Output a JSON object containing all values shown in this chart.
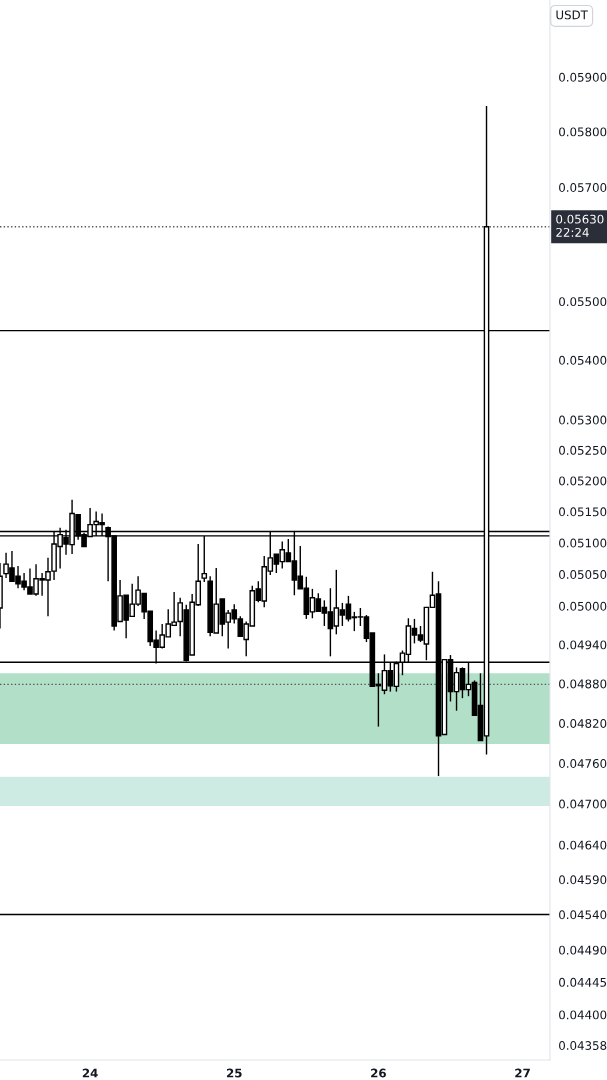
{
  "chart_data": {
    "type": "candlestick",
    "ylabel": "USDT",
    "log": true,
    "x": [
      23.375,
      23.417,
      23.458,
      23.5,
      23.542,
      23.583,
      23.625,
      23.667,
      23.708,
      23.75,
      23.792,
      23.833,
      23.875,
      23.917,
      23.958,
      24,
      24.042,
      24.083,
      24.125,
      24.167,
      24.208,
      24.25,
      24.292,
      24.333,
      24.375,
      24.417,
      24.458,
      24.5,
      24.542,
      24.583,
      24.625,
      24.667,
      24.708,
      24.75,
      24.792,
      24.833,
      24.875,
      24.917,
      24.958,
      25,
      25.042,
      25.083,
      25.125,
      25.167,
      25.208,
      25.25,
      25.292,
      25.333,
      25.375,
      25.417,
      25.458,
      25.5,
      25.542,
      25.583,
      25.625,
      25.667,
      25.708,
      25.75,
      25.792,
      25.833,
      25.875,
      25.917,
      25.958,
      26,
      26.042,
      26.083,
      26.125,
      26.167,
      26.208,
      26.25,
      26.292,
      26.333,
      26.375,
      26.417,
      26.458,
      26.5,
      26.542,
      26.583,
      26.625,
      26.667,
      26.708,
      26.75
    ],
    "ohlc": [
      [
        0.04997,
        0.05068,
        0.04965,
        0.05047
      ],
      [
        0.05051,
        0.05084,
        0.05044,
        0.05066
      ],
      [
        0.0506,
        0.05087,
        0.05039,
        0.05039
      ],
      [
        0.05047,
        0.05063,
        0.05028,
        0.05035
      ],
      [
        0.05039,
        0.05052,
        0.05025,
        0.0503
      ],
      [
        0.0503,
        0.05059,
        0.05019,
        0.05019
      ],
      [
        0.05019,
        0.05066,
        0.05016,
        0.05043
      ],
      [
        0.05043,
        0.05052,
        0.05016,
        0.05041
      ],
      [
        0.05041,
        0.05076,
        0.04984,
        0.05054
      ],
      [
        0.05055,
        0.05119,
        0.05041,
        0.05098
      ],
      [
        0.05094,
        0.05124,
        0.05059,
        0.05113
      ],
      [
        0.05108,
        0.05121,
        0.05081,
        0.05098
      ],
      [
        0.05097,
        0.05169,
        0.05082,
        0.05147
      ],
      [
        0.05145,
        0.05145,
        0.05105,
        0.05111
      ],
      [
        0.05113,
        0.05116,
        0.05094,
        0.05094
      ],
      [
        0.0511,
        0.05156,
        0.0511,
        0.05129
      ],
      [
        0.05129,
        0.0515,
        0.05111,
        0.05134
      ],
      [
        0.05132,
        0.05147,
        0.05111,
        0.05129
      ],
      [
        0.05124,
        0.05126,
        0.05039,
        0.0511
      ],
      [
        0.05111,
        0.05111,
        0.04962,
        0.04969
      ],
      [
        0.04976,
        0.05041,
        0.04976,
        0.05016
      ],
      [
        0.05017,
        0.05017,
        0.0495,
        0.04978
      ],
      [
        0.04984,
        0.05035,
        0.04984,
        0.05003
      ],
      [
        0.05003,
        0.05047,
        0.05,
        0.05025
      ],
      [
        0.0502,
        0.0502,
        0.0498,
        0.04991
      ],
      [
        0.04992,
        0.04992,
        0.04938,
        0.04945
      ],
      [
        0.04947,
        0.04962,
        0.04911,
        0.04936
      ],
      [
        0.04936,
        0.04972,
        0.04934,
        0.04955
      ],
      [
        0.04952,
        0.04995,
        0.04952,
        0.04972
      ],
      [
        0.0497,
        0.05022,
        0.0497,
        0.04975
      ],
      [
        0.04976,
        0.05013,
        0.04953,
        0.05005
      ],
      [
        0.04994,
        0.05002,
        0.04914,
        0.04916
      ],
      [
        0.04924,
        0.05019,
        0.04924,
        0.05006
      ],
      [
        0.05002,
        0.05098,
        0.05,
        0.05039
      ],
      [
        0.05044,
        0.05111,
        0.05038,
        0.05051
      ],
      [
        0.05039,
        0.05047,
        0.04953,
        0.04959
      ],
      [
        0.04958,
        0.0506,
        0.04958,
        0.05003
      ],
      [
        0.05011,
        0.05011,
        0.04953,
        0.04972
      ],
      [
        0.04975,
        0.04994,
        0.04934,
        0.04989
      ],
      [
        0.04994,
        0.05003,
        0.04973,
        0.0498
      ],
      [
        0.0498,
        0.04984,
        0.04953,
        0.04953
      ],
      [
        0.04948,
        0.04976,
        0.04922,
        0.04972
      ],
      [
        0.04969,
        0.05032,
        0.04969,
        0.05024
      ],
      [
        0.05027,
        0.05039,
        0.05006,
        0.05009
      ],
      [
        0.05008,
        0.05079,
        0.04998,
        0.05062
      ],
      [
        0.05055,
        0.05119,
        0.05049,
        0.05076
      ],
      [
        0.05082,
        0.05082,
        0.05052,
        0.05066
      ],
      [
        0.0507,
        0.05102,
        0.05059,
        0.05089
      ],
      [
        0.05084,
        0.05106,
        0.0507,
        0.0507
      ],
      [
        0.05071,
        0.05119,
        0.05017,
        0.05041
      ],
      [
        0.05047,
        0.05095,
        0.05027,
        0.05027
      ],
      [
        0.05028,
        0.05046,
        0.0498,
        0.04987
      ],
      [
        0.04991,
        0.05027,
        0.04981,
        0.05013
      ],
      [
        0.05011,
        0.0502,
        0.04991,
        0.04992
      ],
      [
        0.04998,
        0.05009,
        0.04969,
        0.04989
      ],
      [
        0.04991,
        0.05028,
        0.04922,
        0.04965
      ],
      [
        0.04969,
        0.05057,
        0.04956,
        0.04997
      ],
      [
        0.04994,
        0.05005,
        0.04969,
        0.04986
      ],
      [
        0.05003,
        0.05016,
        0.04976,
        0.0498
      ],
      [
        0.04983,
        0.04991,
        0.04961,
        0.04982
      ],
      [
        0.04983,
        0.04997,
        0.04969,
        0.04983
      ],
      [
        0.04983,
        0.04986,
        0.04944,
        0.0495
      ],
      [
        0.04958,
        0.04958,
        0.04876,
        0.04876
      ],
      [
        0.04879,
        0.04896,
        0.04815,
        0.04877
      ],
      [
        0.0487,
        0.04925,
        0.04864,
        0.049
      ],
      [
        0.049,
        0.04913,
        0.04868,
        0.04877
      ],
      [
        0.04876,
        0.04914,
        0.04868,
        0.04911
      ],
      [
        0.04913,
        0.04931,
        0.04893,
        0.04927
      ],
      [
        0.04925,
        0.04981,
        0.04913,
        0.04969
      ],
      [
        0.04965,
        0.0498,
        0.04942,
        0.04955
      ],
      [
        0.04955,
        0.04969,
        0.04944,
        0.04947
      ],
      [
        0.04941,
        0.04998,
        0.04916,
        0.04998
      ],
      [
        0.04998,
        0.05054,
        0.04998,
        0.05017
      ],
      [
        0.05019,
        0.05039,
        0.04741,
        0.04801
      ],
      [
        0.04803,
        0.04917,
        0.04803,
        0.04917
      ],
      [
        0.04917,
        0.04924,
        0.04853,
        0.04868
      ],
      [
        0.04868,
        0.04905,
        0.04839,
        0.04897
      ],
      [
        0.04903,
        0.04905,
        0.04858,
        0.04871
      ],
      [
        0.04871,
        0.04913,
        0.04861,
        0.04879
      ],
      [
        0.04882,
        0.04885,
        0.04832,
        0.04832
      ],
      [
        0.04847,
        0.04896,
        0.04794,
        0.04794
      ],
      [
        0.04801,
        0.05847,
        0.04773,
        0.0563
      ]
    ],
    "xlim": [
      23.375,
      27.19
    ],
    "xticks": [
      24,
      25,
      26,
      27
    ],
    "ylim": [
      0.04338,
      0.06044
    ],
    "yticks": [
      {
        "value": 0.059,
        "label": "0.05900"
      },
      {
        "value": 0.058,
        "label": "0.05800"
      },
      {
        "value": 0.057,
        "label": "0.05700"
      },
      {
        "value": 0.055,
        "label": "0.05500"
      },
      {
        "value": 0.054,
        "label": "0.05400"
      },
      {
        "value": 0.053,
        "label": "0.05300"
      },
      {
        "value": 0.0525,
        "label": "0.05250"
      },
      {
        "value": 0.052,
        "label": "0.05200"
      },
      {
        "value": 0.0515,
        "label": "0.05150"
      },
      {
        "value": 0.051,
        "label": "0.05100"
      },
      {
        "value": 0.0505,
        "label": "0.05050"
      },
      {
        "value": 0.05,
        "label": "0.05000"
      },
      {
        "value": 0.0494,
        "label": "0.04940"
      },
      {
        "value": 0.0488,
        "label": "0.04880"
      },
      {
        "value": 0.0482,
        "label": "0.04820"
      },
      {
        "value": 0.0476,
        "label": "0.04760"
      },
      {
        "value": 0.047,
        "label": "0.04700"
      },
      {
        "value": 0.0464,
        "label": "0.04640"
      },
      {
        "value": 0.0459,
        "label": "0.04590"
      },
      {
        "value": 0.0454,
        "label": "0.04540"
      },
      {
        "value": 0.0449,
        "label": "0.04490"
      },
      {
        "value": 0.04445,
        "label": "0.04445"
      },
      {
        "value": 0.044,
        "label": "0.04400"
      },
      {
        "value": 0.04358,
        "label": "0.04358"
      }
    ],
    "ref_lines": [
      {
        "axis": "y",
        "value": 0.0545,
        "color": "#000000",
        "line_style": "solid"
      },
      {
        "axis": "y",
        "value": 0.05118,
        "color": "#000000",
        "line_style": "solid"
      },
      {
        "axis": "y",
        "value": 0.05111,
        "color": "#000000",
        "line_style": "solid"
      },
      {
        "axis": "y",
        "value": 0.04913,
        "color": "#000000",
        "line_style": "solid"
      },
      {
        "axis": "y",
        "value": 0.0454,
        "color": "#000000",
        "line_style": "solid"
      },
      {
        "axis": "y",
        "value": 0.0563,
        "color": "#555555",
        "line_style": "dotted"
      },
      {
        "axis": "y",
        "value": 0.04879,
        "color": "#555555",
        "line_style": "dotted"
      }
    ],
    "bands": [
      {
        "axis": "y",
        "from": 0.04697,
        "to": 0.0474,
        "color": "#cdeae3"
      },
      {
        "axis": "y",
        "from": 0.04789,
        "to": 0.04896,
        "color": "#b2dfc8"
      }
    ],
    "annotations": [
      "0.05630\n22:24"
    ],
    "grid": false,
    "legend": false
  }
}
